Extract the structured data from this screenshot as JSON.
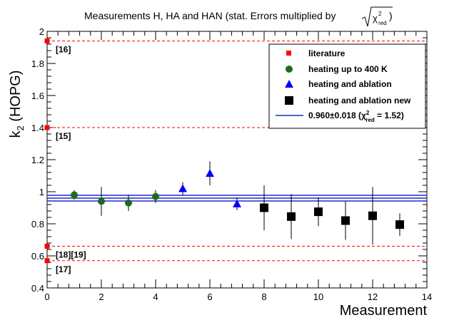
{
  "chart_data": {
    "type": "scatter",
    "title": "Measurements H, HA and HAN (stat. Errors multiplied by",
    "title_sqrt": "χ",
    "title_sup": "2",
    "title_sub": "red",
    "title_close": ")",
    "xlabel": "Measurement",
    "ylabel_main": "k",
    "ylabel_sub": "2",
    "ylabel_rest": " (HOPG)",
    "xlim": [
      0,
      14
    ],
    "ylim": [
      0.4,
      2.0
    ],
    "x_ticks": [
      0,
      2,
      4,
      6,
      8,
      10,
      12,
      14
    ],
    "y_ticks": [
      0.4,
      0.6,
      0.8,
      1.0,
      1.2,
      1.4,
      1.6,
      1.8,
      2.0
    ],
    "x_tick_labels": [
      "0",
      "2",
      "4",
      "6",
      "8",
      "10",
      "12",
      "14"
    ],
    "y_tick_labels": [
      "0.4",
      "0.6",
      "0.8",
      "1",
      "1.2",
      "1.4",
      "1.6",
      "1.8",
      "2"
    ],
    "literature": [
      {
        "value": 1.94,
        "label": "[16]"
      },
      {
        "value": 1.4,
        "label": "[15]"
      },
      {
        "value": 0.66,
        "label": "[18][19]"
      },
      {
        "value": 0.57,
        "label": "[17]"
      }
    ],
    "series": [
      {
        "name": "heating up to 400 K",
        "marker": "circle",
        "color": "#1e6b1e",
        "points": [
          {
            "x": 1,
            "y": 0.98,
            "err": 0.03
          },
          {
            "x": 2,
            "y": 0.94,
            "err": 0.09
          },
          {
            "x": 3,
            "y": 0.93,
            "err": 0.05
          },
          {
            "x": 4,
            "y": 0.97,
            "err": 0.04
          }
        ]
      },
      {
        "name": "heating and ablation",
        "marker": "triangle",
        "color": "#0000ff",
        "points": [
          {
            "x": 5,
            "y": 1.02,
            "err": 0.04
          },
          {
            "x": 6,
            "y": 1.115,
            "err": 0.075
          },
          {
            "x": 7,
            "y": 0.925,
            "err": 0.04
          }
        ]
      },
      {
        "name": "heating and ablation new",
        "marker": "square",
        "color": "#000000",
        "points": [
          {
            "x": 8,
            "y": 0.9,
            "err": 0.14
          },
          {
            "x": 9,
            "y": 0.845,
            "err": 0.14
          },
          {
            "x": 10,
            "y": 0.875,
            "err": 0.09
          },
          {
            "x": 11,
            "y": 0.82,
            "err": 0.12
          },
          {
            "x": 12,
            "y": 0.85,
            "err": 0.18
          },
          {
            "x": 13,
            "y": 0.795,
            "err": 0.07
          }
        ]
      }
    ],
    "fit": {
      "value": 0.96,
      "error": 0.018,
      "color": "#1f2bcf"
    },
    "legend": {
      "placement": "top-right",
      "literature_label": "literature",
      "fit_label_pre": "0.960±0.018 (χ",
      "fit_label_sup": "2",
      "fit_label_sub": "red",
      "fit_label_post": " = 1.52)"
    },
    "colors": {
      "literature": "#ff0000",
      "reference_line": "#ff0000"
    }
  }
}
